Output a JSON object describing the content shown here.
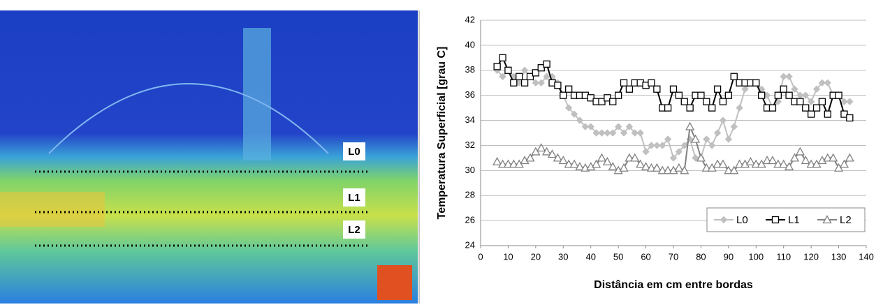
{
  "image_labels": [
    "L0",
    "L1",
    "L2"
  ],
  "chart_data": {
    "type": "line",
    "xlabel": "Distância em cm entre bordas",
    "ylabel": "Temperatura Superficial [grau C]",
    "xlim": [
      0,
      140
    ],
    "xticks": [
      0,
      10,
      20,
      30,
      40,
      50,
      60,
      70,
      80,
      90,
      100,
      110,
      120,
      130,
      140
    ],
    "ylim": [
      24,
      42
    ],
    "yticks": [
      24,
      26,
      28,
      30,
      32,
      34,
      36,
      38,
      40,
      42
    ],
    "grid": true,
    "legend": "lower right",
    "x": [
      6,
      8,
      10,
      12,
      14,
      16,
      18,
      20,
      22,
      24,
      26,
      28,
      30,
      32,
      34,
      36,
      38,
      40,
      42,
      44,
      46,
      48,
      50,
      52,
      54,
      56,
      58,
      60,
      62,
      64,
      66,
      68,
      70,
      72,
      74,
      76,
      78,
      80,
      82,
      84,
      86,
      88,
      90,
      92,
      94,
      96,
      98,
      100,
      102,
      104,
      106,
      108,
      110,
      112,
      114,
      116,
      118,
      120,
      122,
      124,
      126,
      128,
      130,
      132,
      134
    ],
    "series": [
      {
        "name": "L0",
        "color": "#c0c0c0",
        "marker": "diamond",
        "values": [
          38,
          37.5,
          38,
          37.5,
          37,
          38,
          37.5,
          37,
          37,
          37.5,
          37.5,
          37,
          36,
          35,
          34.5,
          34,
          33.5,
          33.5,
          33,
          33,
          33,
          33,
          33.5,
          33,
          33.5,
          33,
          33,
          31.5,
          32,
          32,
          32,
          32.5,
          31,
          31.5,
          32,
          32.5,
          31,
          31,
          32.5,
          32,
          33,
          34,
          32.5,
          33.5,
          35,
          36.5,
          37,
          37,
          36.5,
          36,
          35,
          35.5,
          37.5,
          37.5,
          36.5,
          36,
          36,
          35.5,
          36.5,
          37,
          37,
          36,
          36,
          35.5,
          35.5
        ]
      },
      {
        "name": "L1",
        "color": "#000000",
        "marker": "square",
        "values": [
          38.3,
          39,
          38,
          37,
          37.5,
          37,
          37.5,
          37.8,
          38.2,
          38.5,
          37,
          36.8,
          36,
          36.5,
          36,
          36,
          36,
          35.8,
          35.5,
          35.5,
          35.8,
          35.5,
          36,
          37,
          36.5,
          37,
          37,
          36.8,
          37,
          36.5,
          35,
          35,
          36.5,
          36,
          35.5,
          35,
          36,
          36,
          35.5,
          35,
          36.5,
          35.5,
          36,
          37.5,
          37,
          37,
          37,
          37,
          36,
          35,
          35,
          36,
          36.5,
          36,
          35.5,
          35.5,
          35,
          34.5,
          35,
          35.5,
          34.5,
          36,
          36,
          34.5,
          34.2
        ]
      },
      {
        "name": "L2",
        "color": "#808080",
        "marker": "triangle",
        "values": [
          30.7,
          30.5,
          30.5,
          30.5,
          30.5,
          30.8,
          31,
          31.5,
          31.8,
          31.5,
          31.3,
          31,
          30.8,
          30.5,
          30.5,
          30.3,
          30.2,
          30.3,
          30.5,
          31,
          30.7,
          30.3,
          30,
          30.2,
          31,
          31,
          30.5,
          30.3,
          30.2,
          30.2,
          30,
          30,
          30,
          30.2,
          30,
          33.5,
          32.5,
          31,
          30.2,
          30.2,
          30.5,
          30.5,
          30,
          30,
          30.5,
          30.5,
          30.7,
          30.5,
          30.5,
          30.8,
          30.8,
          30.5,
          30.5,
          30.3,
          31,
          31.5,
          30.8,
          30.5,
          30.5,
          30.8,
          31,
          31,
          30.2,
          30.5,
          31
        ]
      }
    ]
  }
}
